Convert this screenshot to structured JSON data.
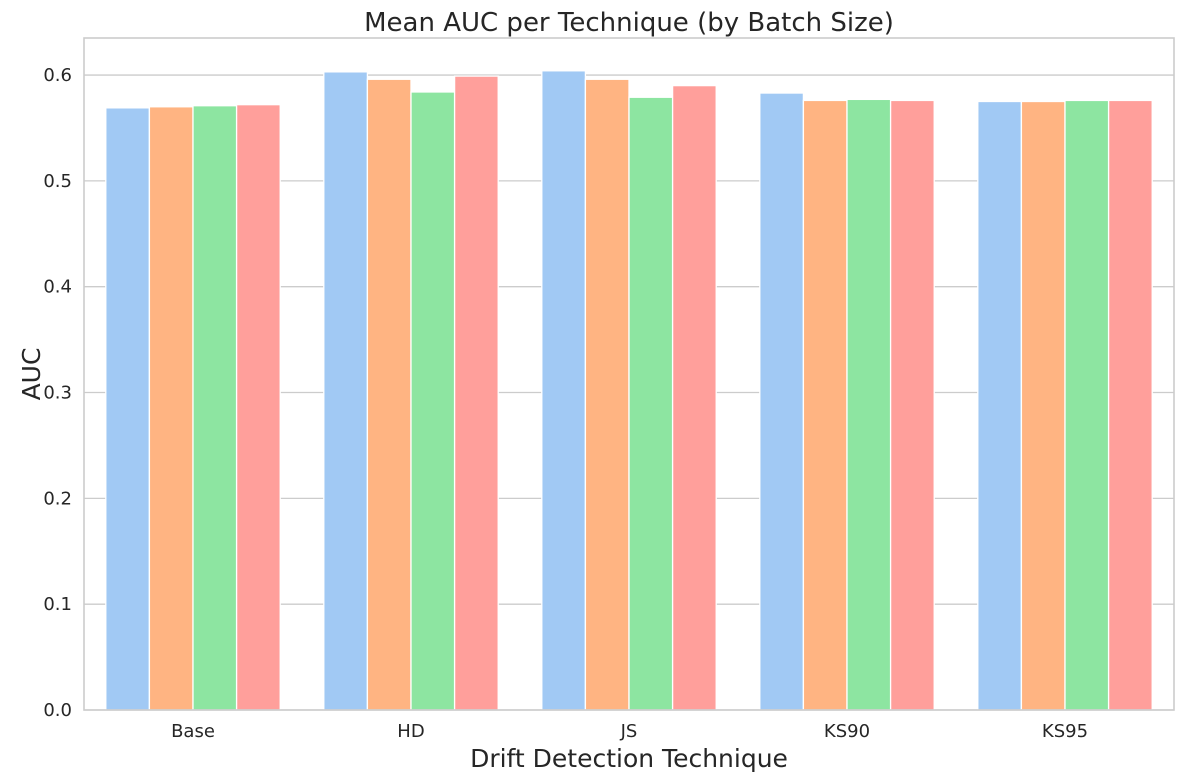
{
  "chart_data": {
    "type": "bar",
    "title": "Mean AUC per Technique (by Batch Size)",
    "xlabel": "Drift Detection Technique",
    "ylabel": "AUC",
    "categories": [
      "Base",
      "HD",
      "JS",
      "KS90",
      "KS95"
    ],
    "ylim": [
      0,
      0.635
    ],
    "yticks": [
      "0.0",
      "0.1",
      "0.2",
      "0.3",
      "0.4",
      "0.5",
      "0.6"
    ],
    "grid": true,
    "legend": null,
    "colors": [
      "#a1c9f4",
      "#ffb482",
      "#8de5a1",
      "#ff9f9b"
    ],
    "series": [
      {
        "values": [
          0.569,
          0.603,
          0.604,
          0.583,
          0.575
        ]
      },
      {
        "values": [
          0.57,
          0.596,
          0.596,
          0.576,
          0.575
        ]
      },
      {
        "values": [
          0.571,
          0.584,
          0.579,
          0.577,
          0.576
        ]
      },
      {
        "values": [
          0.572,
          0.599,
          0.59,
          0.576,
          0.576
        ]
      }
    ]
  }
}
